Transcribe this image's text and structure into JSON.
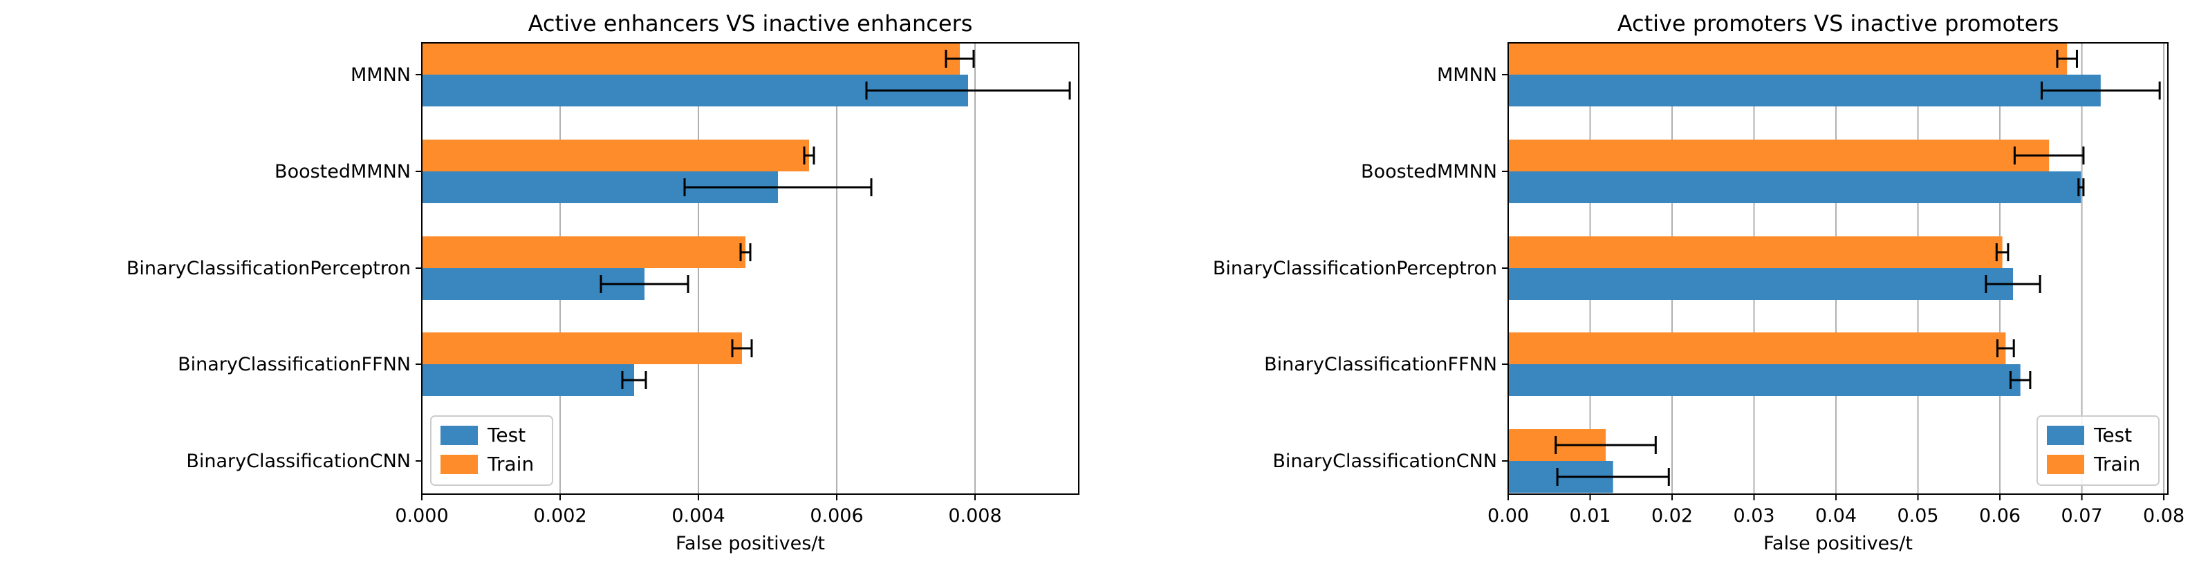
{
  "chart_data": [
    {
      "type": "bar",
      "orientation": "horizontal",
      "title": "Active enhancers VS inactive enhancers",
      "xlabel": "False positives/t",
      "ylabel": "",
      "categories": [
        "MMNN",
        "BoostedMMNN",
        "BinaryClassificationPerceptron",
        "BinaryClassificationFFNN",
        "BinaryClassificationCNN"
      ],
      "xlim": [
        0,
        0.0095
      ],
      "xticks": [
        0.0,
        0.002,
        0.004,
        0.006,
        0.008
      ],
      "xtick_labels": [
        "0.000",
        "0.002",
        "0.004",
        "0.006",
        "0.008"
      ],
      "grid": "vertical",
      "legend_position": "lower-left",
      "series": [
        {
          "name": "Test",
          "color": "#3a87c0",
          "values": [
            0.0079,
            0.00515,
            0.00322,
            0.00307,
            0.0
          ],
          "errors": [
            0.00147,
            0.00135,
            0.00063,
            0.00017,
            0.0
          ]
        },
        {
          "name": "Train",
          "color": "#ff8c2b",
          "values": [
            0.00778,
            0.0056,
            0.00468,
            0.00463,
            0.0
          ],
          "errors": [
            0.0002,
            7e-05,
            7e-05,
            0.00014,
            0.0
          ]
        }
      ]
    },
    {
      "type": "bar",
      "orientation": "horizontal",
      "title": "Active promoters VS inactive promoters",
      "xlabel": "False positives/t",
      "ylabel": "",
      "categories": [
        "MMNN",
        "BoostedMMNN",
        "BinaryClassificationPerceptron",
        "BinaryClassificationFFNN",
        "BinaryClassificationCNN"
      ],
      "xlim": [
        0,
        0.0805
      ],
      "xticks": [
        0.0,
        0.01,
        0.02,
        0.03,
        0.04,
        0.05,
        0.06,
        0.07,
        0.08
      ],
      "xtick_labels": [
        "0.00",
        "0.01",
        "0.02",
        "0.03",
        "0.04",
        "0.05",
        "0.06",
        "0.07",
        "0.08"
      ],
      "grid": "vertical",
      "legend_position": "lower-right",
      "series": [
        {
          "name": "Test",
          "color": "#3a87c0",
          "values": [
            0.0723,
            0.0699,
            0.0616,
            0.0625,
            0.0128
          ],
          "errors": [
            0.0072,
            0.0003,
            0.0033,
            0.0012,
            0.0068
          ]
        },
        {
          "name": "Train",
          "color": "#ff8c2b",
          "values": [
            0.0682,
            0.066,
            0.0603,
            0.0607,
            0.0119
          ],
          "errors": [
            0.0012,
            0.0042,
            0.0007,
            0.001,
            0.0061
          ]
        }
      ]
    }
  ]
}
